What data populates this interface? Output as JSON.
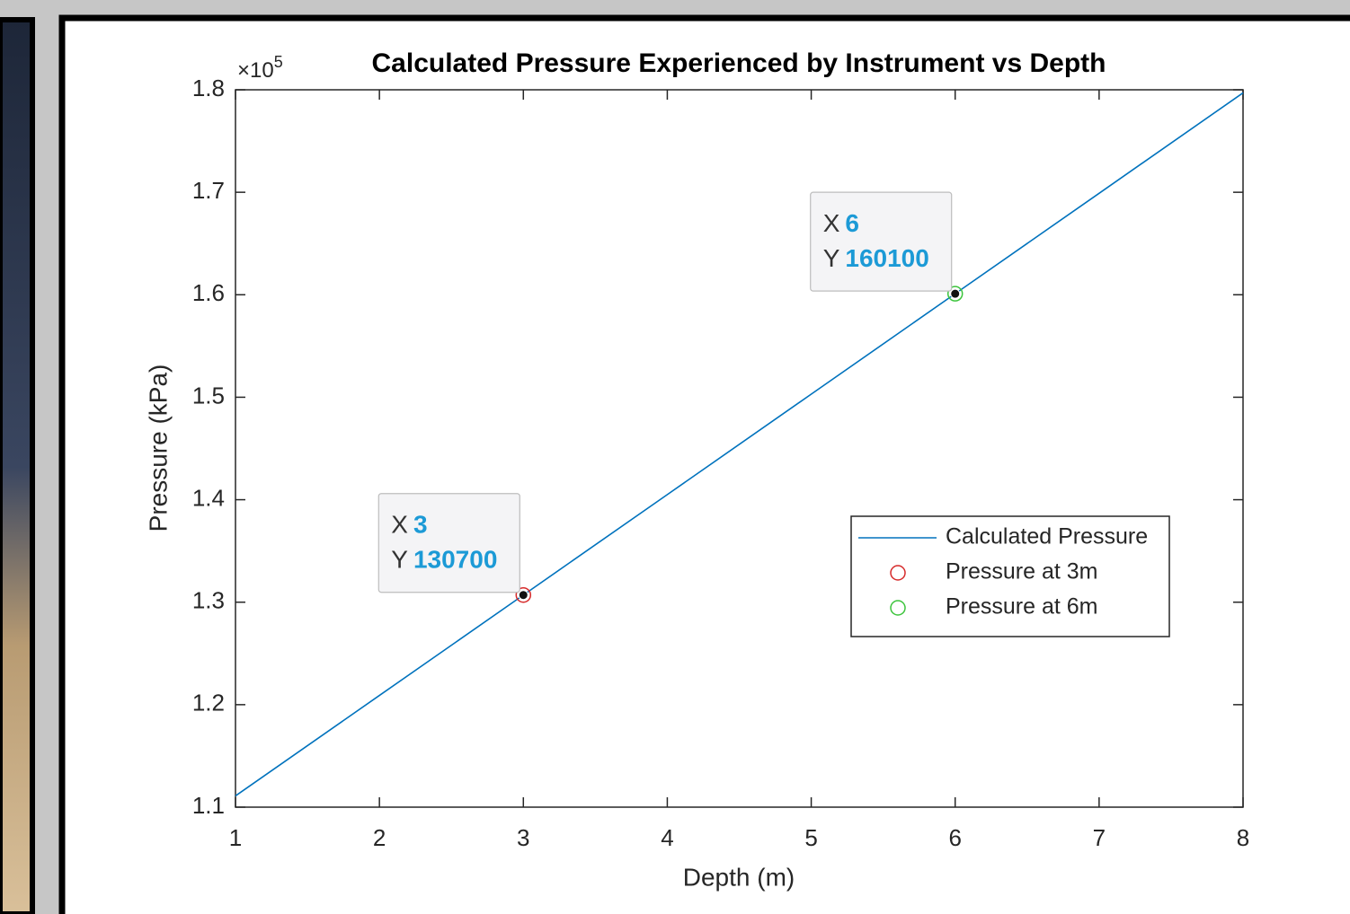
{
  "chart_data": {
    "type": "line",
    "title": "Calculated Pressure Experienced by Instrument vs Depth",
    "xlabel": "Depth (m)",
    "ylabel": "Pressure (kPa)",
    "xlim": [
      1,
      8
    ],
    "ylim": [
      110000,
      180000
    ],
    "xticks": [
      1,
      2,
      3,
      4,
      5,
      6,
      7,
      8
    ],
    "yticks": [
      {
        "value": 110000,
        "label": "1.1"
      },
      {
        "value": 120000,
        "label": "1.2"
      },
      {
        "value": 130000,
        "label": "1.3"
      },
      {
        "value": 140000,
        "label": "1.4"
      },
      {
        "value": 150000,
        "label": "1.5"
      },
      {
        "value": 160000,
        "label": "1.6"
      },
      {
        "value": 170000,
        "label": "1.7"
      },
      {
        "value": 180000,
        "label": "1.8"
      }
    ],
    "y_multiplier": {
      "base": "×10",
      "exponent": "5"
    },
    "datatip_labels": [
      "X",
      "Y"
    ],
    "legend": "right",
    "grid": false,
    "series": [
      {
        "name": "Calculated Pressure",
        "color": "#0072bd",
        "marker": "none",
        "x": [
          1,
          2,
          3,
          4,
          5,
          6,
          7,
          8
        ],
        "values": [
          111100,
          120900,
          130700,
          140500,
          150300,
          160100,
          169900,
          179700
        ]
      },
      {
        "name": "Pressure at 3m",
        "color": "#d62a2a",
        "marker": "circle",
        "datatip": true,
        "x": [
          3
        ],
        "values": [
          130700
        ]
      },
      {
        "name": "Pressure at 6m",
        "color": "#3cc43c",
        "marker": "circle",
        "datatip": true,
        "x": [
          6
        ],
        "values": [
          160100
        ]
      }
    ]
  }
}
